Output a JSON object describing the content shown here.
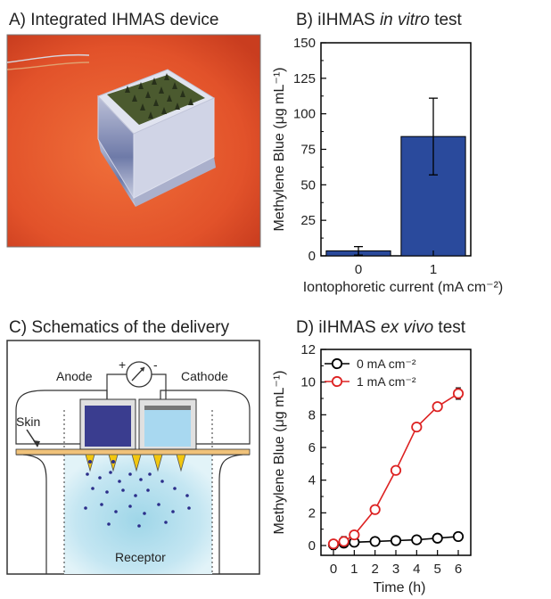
{
  "panels": {
    "a": {
      "title": "A) Integrated IHMAS device"
    },
    "b": {
      "title_prefix": "B) iIHMAS ",
      "title_italic": "in vitro",
      "title_suffix": " test"
    },
    "c": {
      "title": "C) Schematics of the delivery",
      "anode": "Anode",
      "cathode": "Cathode",
      "skin": "Skin",
      "receptor": "Receptor",
      "plus": "+",
      "minus": "-"
    },
    "d": {
      "title_prefix": "D) iIHMAS ",
      "title_italic": "ex vivo",
      "title_suffix": " test"
    }
  },
  "chart_data": [
    {
      "type": "bar",
      "panel": "B",
      "categories": [
        "0",
        "1"
      ],
      "values": [
        3.5,
        84
      ],
      "errors": [
        3,
        27
      ],
      "xlabel": "Iontophoretic current (mA cm⁻²)",
      "ylabel": "Methylene Blue (μg mL⁻¹)",
      "ylim": [
        0,
        150
      ],
      "yticks": [
        0,
        25,
        50,
        75,
        100,
        125,
        150
      ],
      "colors": {
        "bar": "#2a4a9c",
        "edge": "#000000"
      }
    },
    {
      "type": "line",
      "panel": "D",
      "x": [
        0,
        0.5,
        1,
        2,
        3,
        4,
        5,
        6
      ],
      "series": [
        {
          "name": "0 mA cm⁻²",
          "values": [
            0.05,
            0.15,
            0.2,
            0.25,
            0.3,
            0.35,
            0.45,
            0.55
          ],
          "errors": [
            0.3,
            0.25,
            0.2,
            0.25,
            0.15,
            0.15,
            0.2,
            0.2
          ],
          "color": "#000000"
        },
        {
          "name": "1 mA cm⁻²",
          "values": [
            0.1,
            0.25,
            0.65,
            2.2,
            4.6,
            7.25,
            8.5,
            9.3
          ],
          "errors": [
            0.25,
            0.3,
            0.2,
            0.25,
            0.2,
            0.2,
            0.2,
            0.35
          ],
          "color": "#dd2222"
        }
      ],
      "xlabel": "Time (h)",
      "ylabel": "Methylene Blue (μg mL⁻¹)",
      "xlim": [
        -0.6,
        6.6
      ],
      "ylim": [
        -0.6,
        12
      ],
      "xticks": [
        0,
        1,
        2,
        3,
        4,
        5,
        6
      ],
      "yticks": [
        0,
        2,
        4,
        6,
        8,
        10,
        12
      ],
      "legend_position": "top-left"
    }
  ]
}
